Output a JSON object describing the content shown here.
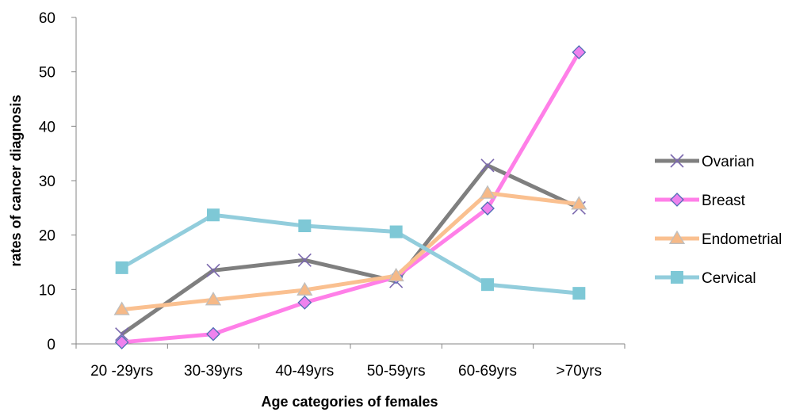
{
  "chart_data": {
    "type": "line",
    "title": "",
    "xlabel": "Age categories of females",
    "ylabel": "rates of cancer diagnosis",
    "categories": [
      "20 -29yrs",
      "30-39yrs",
      "40-49yrs",
      "50-59yrs",
      "60-69yrs",
      ">70yrs"
    ],
    "ylim": [
      0,
      60
    ],
    "yticks": [
      "0",
      "10",
      "20",
      "30",
      "40",
      "50",
      "60"
    ],
    "grid": false,
    "legend_position": "right",
    "series": [
      {
        "name": "Ovarian",
        "values": [
          1.8,
          13.5,
          15.4,
          11.5,
          32.8,
          25.0
        ],
        "color": "#7f7f7f",
        "marker": "x-marker",
        "marker_color": "#7b68ae"
      },
      {
        "name": "Breast",
        "values": [
          0.3,
          1.8,
          7.6,
          12.3,
          24.9,
          53.6
        ],
        "color": "#ff7fe8",
        "marker": "diamond-marker",
        "marker_color": "#ee82ee"
      },
      {
        "name": "Endometrial",
        "values": [
          6.3,
          8.1,
          9.9,
          12.5,
          27.7,
          25.7
        ],
        "color": "#fac090",
        "marker": "triangle-marker",
        "marker_color": "#f6b987"
      },
      {
        "name": "Cervical",
        "values": [
          14.0,
          23.7,
          21.7,
          20.6,
          10.9,
          9.3
        ],
        "color": "#92cddc",
        "marker": "square-marker",
        "marker_color": "#7ec8d6"
      }
    ]
  }
}
